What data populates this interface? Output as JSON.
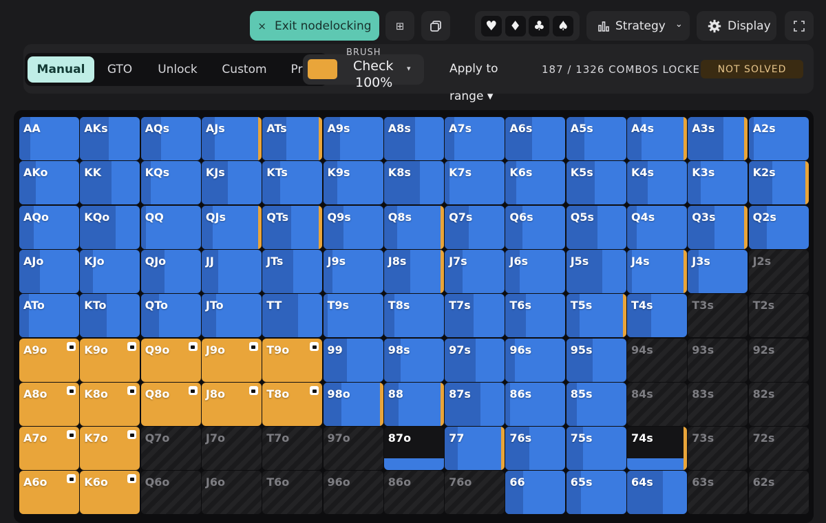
{
  "toolbar": {
    "exit_nodelocking_label": "Exit nodelocking",
    "exit_icon": "×",
    "grid_icon": "⊞",
    "copy_icon": "⧉",
    "suits": [
      "♥",
      "♦",
      "♣",
      "♠"
    ],
    "strategy_label": "Strategy",
    "strategy_caret": "⌄",
    "display_label": "Display"
  },
  "tabs": [
    {
      "label": "Manual",
      "active": true
    },
    {
      "label": "GTO",
      "active": false
    },
    {
      "label": "Unlock",
      "active": false
    },
    {
      "label": "Custom",
      "active": false
    },
    {
      "label": "Pr",
      "active": false
    }
  ],
  "brush": {
    "label": "BRUSH",
    "action": "Check",
    "percent": "100%",
    "caret": "▾",
    "color": "#e9a53a"
  },
  "apply_to": {
    "line1": "Apply to",
    "line2": "range ▾"
  },
  "status": {
    "combos_locked": "187 / 1326 COMBOS LOCKED",
    "solved": "NOT SOLVED"
  },
  "colors": {
    "check_blue": "#3b7be0",
    "fold_orange": "#e9a53a",
    "accent_teal": "#5ec8b2"
  },
  "matrix": {
    "rows": [
      [
        {
          "hand": "AA",
          "state": "blue"
        },
        {
          "hand": "AKs",
          "state": "blue"
        },
        {
          "hand": "AQs",
          "state": "blue"
        },
        {
          "hand": "AJs",
          "state": "blue-fold"
        },
        {
          "hand": "ATs",
          "state": "blue-fold"
        },
        {
          "hand": "A9s",
          "state": "blue"
        },
        {
          "hand": "A8s",
          "state": "blue"
        },
        {
          "hand": "A7s",
          "state": "blue"
        },
        {
          "hand": "A6s",
          "state": "blue"
        },
        {
          "hand": "A5s",
          "state": "blue"
        },
        {
          "hand": "A4s",
          "state": "blue-fold"
        },
        {
          "hand": "A3s",
          "state": "blue-fold"
        },
        {
          "hand": "A2s",
          "state": "blue"
        }
      ],
      [
        {
          "hand": "AKo",
          "state": "blue"
        },
        {
          "hand": "KK",
          "state": "blue"
        },
        {
          "hand": "KQs",
          "state": "blue"
        },
        {
          "hand": "KJs",
          "state": "blue"
        },
        {
          "hand": "KTs",
          "state": "blue"
        },
        {
          "hand": "K9s",
          "state": "blue"
        },
        {
          "hand": "K8s",
          "state": "blue"
        },
        {
          "hand": "K7s",
          "state": "blue"
        },
        {
          "hand": "K6s",
          "state": "blue"
        },
        {
          "hand": "K5s",
          "state": "blue"
        },
        {
          "hand": "K4s",
          "state": "blue"
        },
        {
          "hand": "K3s",
          "state": "blue"
        },
        {
          "hand": "K2s",
          "state": "blue-fold"
        }
      ],
      [
        {
          "hand": "AQo",
          "state": "blue"
        },
        {
          "hand": "KQo",
          "state": "blue"
        },
        {
          "hand": "QQ",
          "state": "blue"
        },
        {
          "hand": "QJs",
          "state": "blue-fold"
        },
        {
          "hand": "QTs",
          "state": "blue-fold"
        },
        {
          "hand": "Q9s",
          "state": "blue"
        },
        {
          "hand": "Q8s",
          "state": "blue-fold"
        },
        {
          "hand": "Q7s",
          "state": "blue"
        },
        {
          "hand": "Q6s",
          "state": "blue"
        },
        {
          "hand": "Q5s",
          "state": "blue"
        },
        {
          "hand": "Q4s",
          "state": "blue"
        },
        {
          "hand": "Q3s",
          "state": "blue-fold"
        },
        {
          "hand": "Q2s",
          "state": "blue"
        }
      ],
      [
        {
          "hand": "AJo",
          "state": "blue"
        },
        {
          "hand": "KJo",
          "state": "blue"
        },
        {
          "hand": "QJo",
          "state": "blue"
        },
        {
          "hand": "JJ",
          "state": "blue"
        },
        {
          "hand": "JTs",
          "state": "blue"
        },
        {
          "hand": "J9s",
          "state": "blue"
        },
        {
          "hand": "J8s",
          "state": "blue-fold"
        },
        {
          "hand": "J7s",
          "state": "blue"
        },
        {
          "hand": "J6s",
          "state": "blue"
        },
        {
          "hand": "J5s",
          "state": "blue"
        },
        {
          "hand": "J4s",
          "state": "blue-fold"
        },
        {
          "hand": "J3s",
          "state": "blue"
        },
        {
          "hand": "J2s",
          "state": "empty"
        }
      ],
      [
        {
          "hand": "ATo",
          "state": "blue"
        },
        {
          "hand": "KTo",
          "state": "blue"
        },
        {
          "hand": "QTo",
          "state": "blue"
        },
        {
          "hand": "JTo",
          "state": "blue"
        },
        {
          "hand": "TT",
          "state": "blue"
        },
        {
          "hand": "T9s",
          "state": "blue"
        },
        {
          "hand": "T8s",
          "state": "blue"
        },
        {
          "hand": "T7s",
          "state": "blue"
        },
        {
          "hand": "T6s",
          "state": "blue"
        },
        {
          "hand": "T5s",
          "state": "blue-fold"
        },
        {
          "hand": "T4s",
          "state": "blue"
        },
        {
          "hand": "T3s",
          "state": "empty"
        },
        {
          "hand": "T2s",
          "state": "empty"
        }
      ],
      [
        {
          "hand": "A9o",
          "state": "orange-lock"
        },
        {
          "hand": "K9o",
          "state": "orange-lock"
        },
        {
          "hand": "Q9o",
          "state": "orange-lock"
        },
        {
          "hand": "J9o",
          "state": "orange-lock"
        },
        {
          "hand": "T9o",
          "state": "orange-lock"
        },
        {
          "hand": "99",
          "state": "blue"
        },
        {
          "hand": "98s",
          "state": "blue"
        },
        {
          "hand": "97s",
          "state": "blue"
        },
        {
          "hand": "96s",
          "state": "blue"
        },
        {
          "hand": "95s",
          "state": "blue"
        },
        {
          "hand": "94s",
          "state": "empty"
        },
        {
          "hand": "93s",
          "state": "empty"
        },
        {
          "hand": "92s",
          "state": "empty"
        }
      ],
      [
        {
          "hand": "A8o",
          "state": "orange-lock"
        },
        {
          "hand": "K8o",
          "state": "orange-lock"
        },
        {
          "hand": "Q8o",
          "state": "orange-lock"
        },
        {
          "hand": "J8o",
          "state": "orange-lock"
        },
        {
          "hand": "T8o",
          "state": "orange-lock"
        },
        {
          "hand": "98o",
          "state": "blue-fold"
        },
        {
          "hand": "88",
          "state": "blue-fold"
        },
        {
          "hand": "87s",
          "state": "blue"
        },
        {
          "hand": "86s",
          "state": "blue"
        },
        {
          "hand": "85s",
          "state": "blue"
        },
        {
          "hand": "84s",
          "state": "empty"
        },
        {
          "hand": "83s",
          "state": "empty"
        },
        {
          "hand": "82s",
          "state": "empty"
        }
      ],
      [
        {
          "hand": "A7o",
          "state": "orange-lock"
        },
        {
          "hand": "K7o",
          "state": "orange-lock"
        },
        {
          "hand": "Q7o",
          "state": "empty"
        },
        {
          "hand": "J7o",
          "state": "empty"
        },
        {
          "hand": "T7o",
          "state": "empty"
        },
        {
          "hand": "97o",
          "state": "empty"
        },
        {
          "hand": "87o",
          "state": "dark"
        },
        {
          "hand": "77",
          "state": "blue-fold"
        },
        {
          "hand": "76s",
          "state": "blue"
        },
        {
          "hand": "75s",
          "state": "blue"
        },
        {
          "hand": "74s",
          "state": "dark-fold"
        },
        {
          "hand": "73s",
          "state": "empty"
        },
        {
          "hand": "72s",
          "state": "empty"
        }
      ],
      [
        {
          "hand": "A6o",
          "state": "orange-lock"
        },
        {
          "hand": "K6o",
          "state": "orange-lock"
        },
        {
          "hand": "Q6o",
          "state": "empty"
        },
        {
          "hand": "J6o",
          "state": "empty"
        },
        {
          "hand": "T6o",
          "state": "empty"
        },
        {
          "hand": "96o",
          "state": "empty"
        },
        {
          "hand": "86o",
          "state": "empty"
        },
        {
          "hand": "76o",
          "state": "empty"
        },
        {
          "hand": "66",
          "state": "blue"
        },
        {
          "hand": "65s",
          "state": "blue"
        },
        {
          "hand": "64s",
          "state": "blue"
        },
        {
          "hand": "63s",
          "state": "empty"
        },
        {
          "hand": "62s",
          "state": "empty"
        }
      ]
    ]
  }
}
